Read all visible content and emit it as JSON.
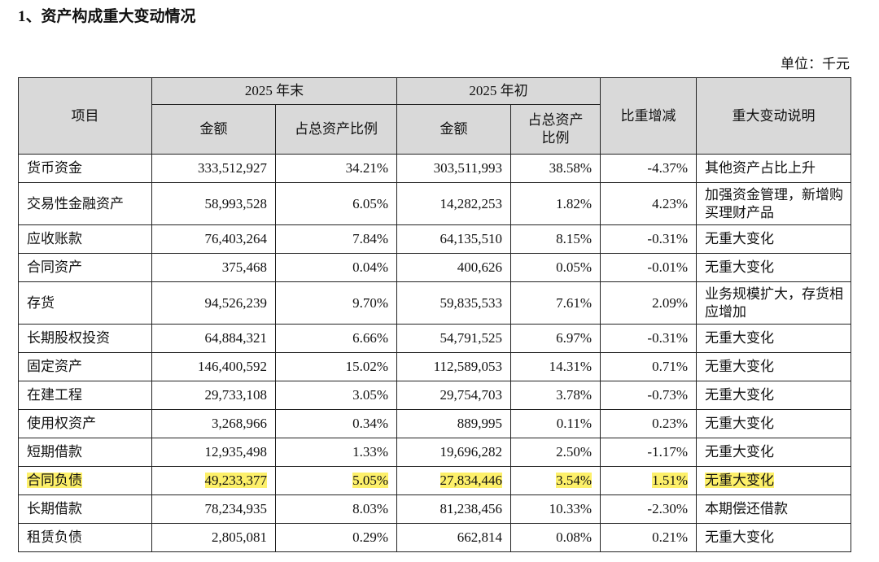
{
  "title": "1、资产构成重大变动情况",
  "unit": "单位：千元",
  "table": {
    "header": {
      "item": "项目",
      "period_end": "2025 年末",
      "period_start": "2025 年初",
      "change": "比重增减",
      "note": "重大变动说明",
      "amount_end": "金额",
      "ratio_end": "占总资产比例",
      "amount_start": "金额",
      "ratio_start": "占总资产比例"
    },
    "rows": [
      [
        "货币资金",
        "333,512,927",
        "34.21%",
        "303,511,993",
        "38.58%",
        "-4.37%",
        "其他资产占比上升"
      ],
      [
        "交易性金融资产",
        "58,993,528",
        "6.05%",
        "14,282,253",
        "1.82%",
        "4.23%",
        "加强资金管理，新增购买理财产品"
      ],
      [
        "应收账款",
        "76,403,264",
        "7.84%",
        "64,135,510",
        "8.15%",
        "-0.31%",
        "无重大变化"
      ],
      [
        "合同资产",
        "375,468",
        "0.04%",
        "400,626",
        "0.05%",
        "-0.01%",
        "无重大变化"
      ],
      [
        "存货",
        "94,526,239",
        "9.70%",
        "59,835,533",
        "7.61%",
        "2.09%",
        "业务规模扩大，存货相应增加"
      ],
      [
        "长期股权投资",
        "64,884,321",
        "6.66%",
        "54,791,525",
        "6.97%",
        "-0.31%",
        "无重大变化"
      ],
      [
        "固定资产",
        "146,400,592",
        "15.02%",
        "112,589,053",
        "14.31%",
        "0.71%",
        "无重大变化"
      ],
      [
        "在建工程",
        "29,733,108",
        "3.05%",
        "29,754,703",
        "3.78%",
        "-0.73%",
        "无重大变化"
      ],
      [
        "使用权资产",
        "3,268,966",
        "0.34%",
        "889,995",
        "0.11%",
        "0.23%",
        "无重大变化"
      ],
      [
        "短期借款",
        "12,935,498",
        "1.33%",
        "19,696,282",
        "2.50%",
        "-1.17%",
        "无重大变化"
      ],
      [
        "合同负债",
        "49,233,377",
        "5.05%",
        "27,834,446",
        "3.54%",
        "1.51%",
        "无重大变化"
      ],
      [
        "长期借款",
        "78,234,935",
        "8.03%",
        "81,238,456",
        "10.33%",
        "-2.30%",
        "本期偿还借款"
      ],
      [
        "租赁负债",
        "2,805,081",
        "0.29%",
        "662,814",
        "0.08%",
        "0.21%",
        "无重大变化"
      ]
    ]
  }
}
